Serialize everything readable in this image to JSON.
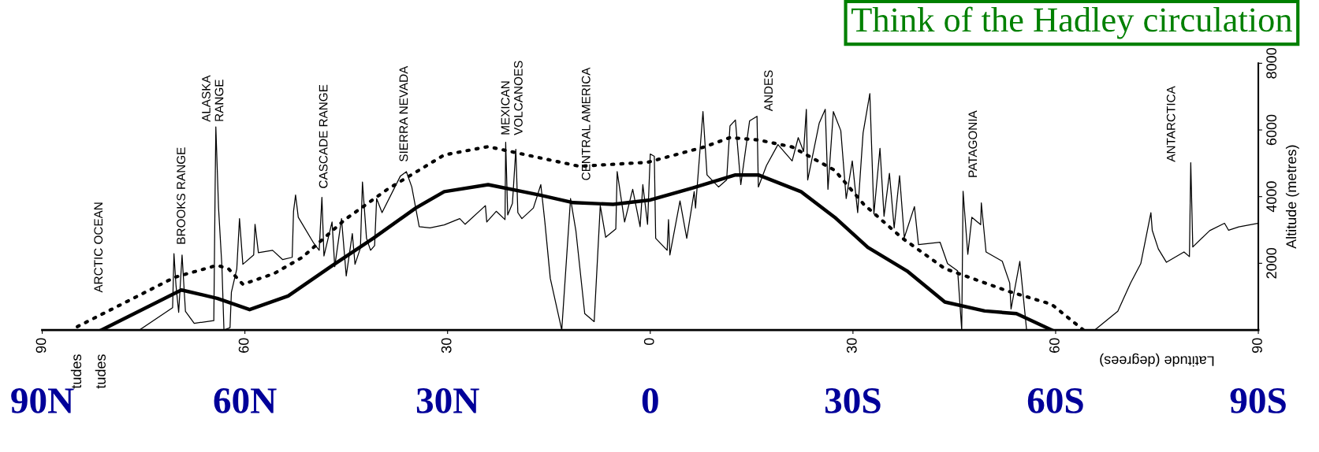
{
  "chart_data": {
    "type": "line",
    "title": "Think of the Hadley circulation",
    "xlabel": "Latitude (degrees)",
    "ylabel": "Altitude (metres)",
    "xlim": [
      90,
      -90
    ],
    "xticks": [
      90,
      60,
      30,
      0,
      {
        "value": -30,
        "label": "30"
      },
      {
        "value": -60,
        "label": "60"
      },
      {
        "value": -90,
        "label": "90"
      }
    ],
    "x2lim": [
      90,
      -90
    ],
    "x2ticks": [
      {
        "value": 90,
        "label": "90N"
      },
      {
        "value": 60,
        "label": "60N"
      },
      {
        "value": 30,
        "label": "30N"
      },
      0,
      {
        "value": -30,
        "label": "30S"
      },
      {
        "value": -60,
        "label": "60S"
      },
      {
        "value": -90,
        "label": "90S"
      }
    ],
    "ylim": [
      0,
      8000
    ],
    "yticks": [
      2000,
      4000,
      6000,
      8000
    ],
    "grid": false,
    "legend": false,
    "marker": "none",
    "series": [
      {
        "color": "#000000",
        "line_style": "solid",
        "x": [
          75.6,
          70.7,
          70.5,
          70.2,
          69.8,
          69.3,
          68.8,
          67.5,
          64.6,
          64.4,
          64.3,
          63.9,
          63.4,
          63.1,
          62.2,
          62.0,
          61.2,
          60.8,
          60.3,
          58.7,
          58.5,
          58.0,
          55.9,
          54.4,
          53.0,
          52.8,
          52.5,
          52.1,
          49.8,
          49.0,
          48.6,
          48.3,
          47.1,
          46.7,
          45.7,
          45.0,
          44.1,
          43.7,
          42.9,
          42.6,
          42.0,
          41.4,
          40.8,
          40.5,
          39.7,
          37.0,
          36.1,
          35.3,
          34.2,
          32.6,
          30.5,
          28.2,
          27.4,
          24.4,
          24.2,
          22.8,
          21.5,
          21.4,
          21.1,
          20.4,
          19.9,
          19.6,
          19.0,
          17.3,
          16.2,
          15.6,
          14.8,
          13.1,
          11.8,
          11.0,
          9.7,
          8.3,
          7.4,
          6.6,
          5.1,
          4.9,
          3.8,
          2.6,
          1.5,
          1.1,
          0.4,
          0.0,
          -0.6,
          -0.8,
          -2.5,
          -2.7,
          -2.9,
          -4.4,
          -5.4,
          -6.5,
          -6.7,
          -7.8,
          -8.4,
          -10.1,
          -11.3,
          -11.8,
          -12.6,
          -13.4,
          -14.7,
          -15.8,
          -16.0,
          -17.2,
          -18.9,
          -21.0,
          -21.9,
          -22.7,
          -23.1,
          -23.3,
          -25.0,
          -25.9,
          -26.3,
          -27.1,
          -28.2,
          -29.0,
          -29.9,
          -30.7,
          -31.5,
          -32.5,
          -33.1,
          -34.0,
          -34.6,
          -35.4,
          -36.1,
          -36.9,
          -37.6,
          -39.1,
          -39.7,
          -42.9,
          -44.0,
          -45.5,
          -46.1,
          -46.3,
          -47.0,
          -47.6,
          -48.9,
          -49.0,
          -49.7,
          -52.1,
          -53.2,
          -53.4,
          -54.7,
          -55.7,
          -60.0,
          -65.8,
          -69.2,
          -71.1,
          -72.6,
          -74.1,
          -74.3,
          -75.2,
          -76.4,
          -79.0,
          -79.8,
          -80.0,
          -80.3,
          -82.8,
          -85.0,
          -85.6,
          -87.1,
          -90.0
        ],
        "values": [
          0,
          670,
          2290,
          1340,
          530,
          2250,
          560,
          200,
          280,
          4360,
          6090,
          3660,
          1900,
          0,
          70,
          1130,
          1830,
          3340,
          1970,
          2250,
          3170,
          2320,
          2390,
          2110,
          2180,
          3560,
          4050,
          3380,
          2600,
          2390,
          3980,
          2220,
          3240,
          1900,
          3340,
          1620,
          2890,
          1970,
          2460,
          4440,
          2750,
          2390,
          2530,
          3940,
          3520,
          4610,
          4750,
          4290,
          3100,
          3060,
          3150,
          3340,
          3170,
          3730,
          3240,
          3560,
          3310,
          5630,
          3450,
          3800,
          5420,
          3520,
          3340,
          3660,
          4360,
          3240,
          1550,
          0,
          3940,
          2960,
          490,
          250,
          3730,
          2780,
          3030,
          4750,
          3240,
          4220,
          3100,
          4360,
          3170,
          5280,
          5210,
          2750,
          2390,
          3310,
          2250,
          3870,
          2750,
          4150,
          3660,
          6550,
          4650,
          4290,
          4500,
          6120,
          6300,
          4360,
          6270,
          6410,
          4290,
          4930,
          5560,
          5070,
          5770,
          5350,
          6620,
          4500,
          6200,
          6620,
          4220,
          6550,
          5980,
          3940,
          5070,
          3520,
          5910,
          7090,
          3480,
          5450,
          3410,
          4700,
          3060,
          4630,
          2770,
          3700,
          2560,
          2630,
          1990,
          1770,
          0,
          4160,
          2270,
          3380,
          3160,
          3810,
          2340,
          2060,
          1410,
          630,
          2060,
          0,
          null,
          0,
          560,
          1410,
          1990,
          3520,
          2990,
          2430,
          2030,
          2340,
          2200,
          5020,
          2490,
          2980,
          3200,
          2990,
          3090,
          3200
        ]
      },
      {
        "color": "#000000",
        "line_style": "solid",
        "x": [
          81.2,
          69.4,
          64.1,
          59.3,
          53.6,
          47.3,
          41.0,
          34.7,
          30.5,
          24.0,
          16.4,
          11.4,
          5.5,
          0.0,
          -6.3,
          -12.6,
          -16.0,
          -22.3,
          -27.3,
          -32.2,
          -38.0,
          -43.6,
          -49.5,
          -54.2,
          -59.4
        ],
        "values": [
          0,
          1200,
          950,
          610,
          1020,
          1900,
          2750,
          3660,
          4150,
          4360,
          4050,
          3820,
          3770,
          3900,
          4260,
          4650,
          4650,
          4150,
          3380,
          2480,
          1770,
          840,
          570,
          490,
          0
        ]
      },
      {
        "color": "#000000",
        "line_style": "dotted",
        "x": [
          84.8,
          76.8,
          70.4,
          64.1,
          62.4,
          60.3,
          55.7,
          51.5,
          45.2,
          38.9,
          30.5,
          24.0,
          19.0,
          10.5,
          0.4,
          -8.0,
          -11.8,
          -16.0,
          -21.0,
          -27.3,
          -31.6,
          -37.2,
          -43.6,
          -53.0,
          -59.4,
          -64.1
        ],
        "values": [
          100,
          920,
          1580,
          1940,
          1830,
          1370,
          1690,
          2180,
          3310,
          4220,
          5250,
          5500,
          5280,
          4910,
          5030,
          5490,
          5770,
          5700,
          5490,
          4790,
          3770,
          2770,
          1840,
          1160,
          770,
          0
        ]
      }
    ],
    "annotations": [
      "ARCTIC OCEAN",
      "BROOKS RANGE",
      "ALASKA\nRANGE",
      "CASCADE RANGE",
      "SIERRA NEVADA",
      "MEXICAN\nVOLCANOES",
      "CENTRAL AMERICA",
      "ANDES",
      "PATAGONIA",
      "ANTARCTICA",
      "tudes",
      "tudes"
    ]
  }
}
